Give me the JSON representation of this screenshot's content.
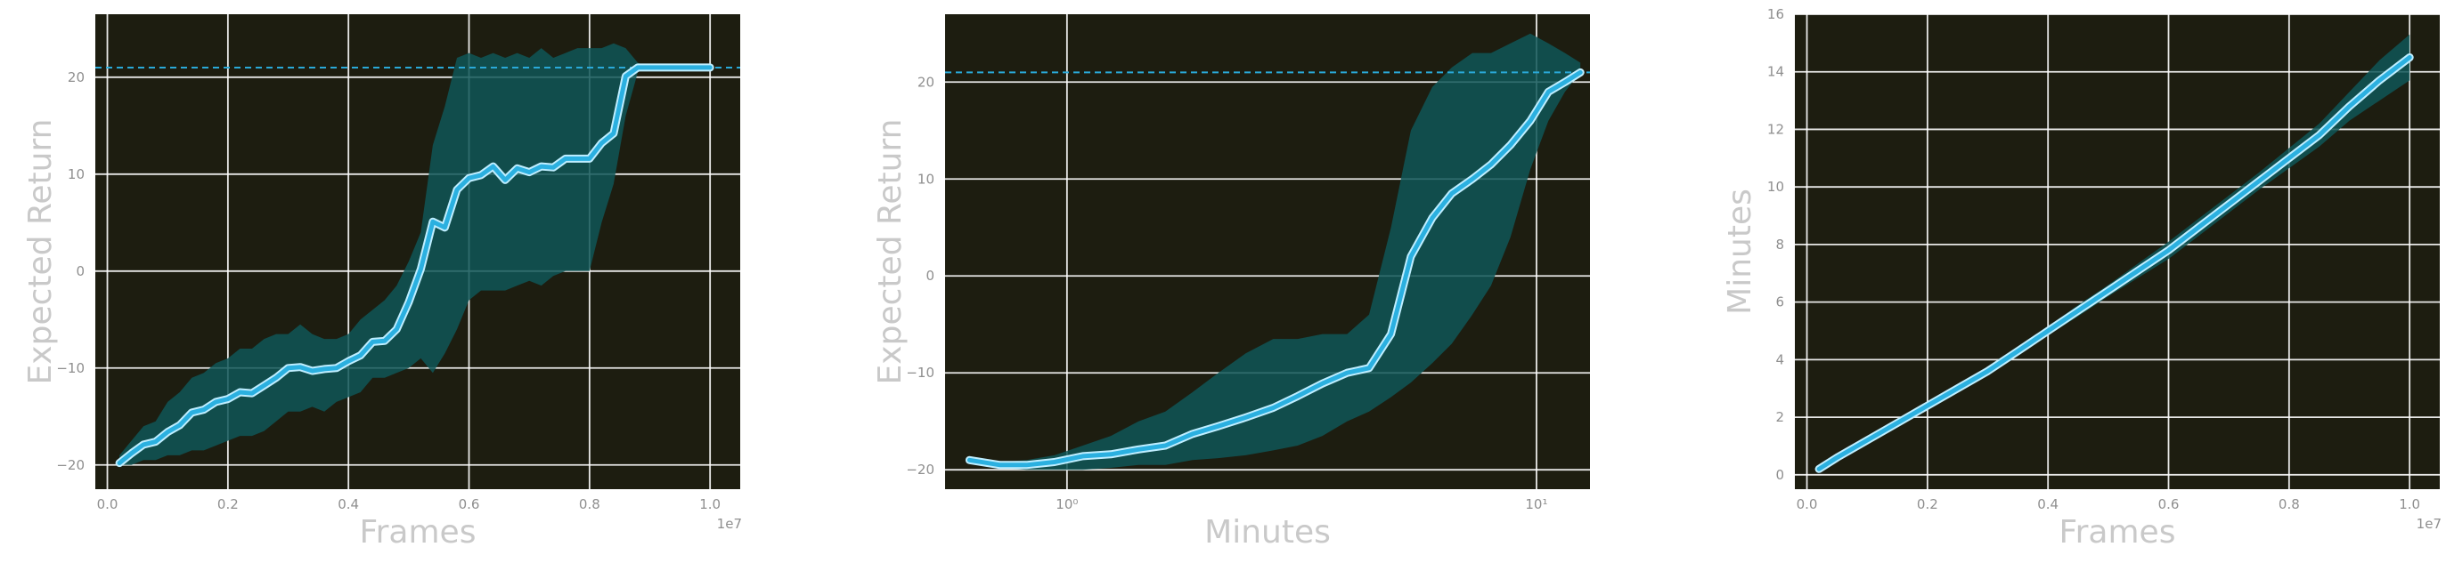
{
  "colors": {
    "background": "#1d1d10",
    "band": "#0f5657",
    "line": "#2bb0e0",
    "reference": "#2aa9d8"
  },
  "chart_data": [
    {
      "type": "line",
      "xlabel": "Frames",
      "ylabel": "Expected Return",
      "x_offset_label": "1e7",
      "xlim": [
        -0.02,
        1.05
      ],
      "ylim": [
        -22.5,
        26.5
      ],
      "xticks": [
        0.0,
        0.2,
        0.4,
        0.6,
        0.8,
        1.0
      ],
      "xtick_labels": [
        "0.0",
        "0.2",
        "0.4",
        "0.6",
        "0.8",
        "1.0"
      ],
      "yticks": [
        -20,
        -10,
        0,
        10,
        20
      ],
      "ytick_labels": [
        "−20",
        "−10",
        "0",
        "10",
        "20"
      ],
      "reference_line": 21,
      "grid": true,
      "x": [
        0.02,
        0.04,
        0.06,
        0.08,
        0.1,
        0.12,
        0.14,
        0.16,
        0.18,
        0.2,
        0.22,
        0.24,
        0.26,
        0.28,
        0.3,
        0.32,
        0.34,
        0.36,
        0.38,
        0.4,
        0.42,
        0.44,
        0.46,
        0.48,
        0.5,
        0.52,
        0.54,
        0.56,
        0.58,
        0.6,
        0.62,
        0.64,
        0.66,
        0.68,
        0.7,
        0.72,
        0.74,
        0.76,
        0.78,
        0.8,
        0.82,
        0.84,
        0.86,
        0.88,
        0.9,
        0.92,
        0.94,
        0.96,
        0.98,
        1.0
      ],
      "mean": [
        -19.8,
        -18.8,
        -17.9,
        -17.6,
        -16.6,
        -15.9,
        -14.6,
        -14.3,
        -13.5,
        -13.2,
        -12.5,
        -12.6,
        -11.8,
        -11.0,
        -10.0,
        -9.9,
        -10.3,
        -10.1,
        -10.0,
        -9.3,
        -8.7,
        -7.3,
        -7.2,
        -6.0,
        -3.2,
        0.2,
        5.1,
        4.5,
        8.4,
        9.6,
        9.9,
        10.8,
        9.4,
        10.6,
        10.2,
        10.8,
        10.7,
        11.6,
        11.6,
        11.6,
        13.2,
        14.2,
        20.1,
        21.0,
        21.0,
        21.0,
        21.0,
        21.0,
        21.0,
        21.0
      ],
      "upper": [
        -19.0,
        -17.5,
        -16.0,
        -15.5,
        -13.5,
        -12.5,
        -11.0,
        -10.5,
        -9.5,
        -9.0,
        -8.0,
        -8.0,
        -7.0,
        -6.5,
        -6.5,
        -5.5,
        -6.5,
        -7.0,
        -7.0,
        -6.5,
        -5.0,
        -4.0,
        -3.0,
        -1.5,
        1.0,
        4.0,
        13.0,
        17.0,
        22.0,
        22.5,
        22.0,
        22.5,
        22.0,
        22.5,
        22.0,
        23.0,
        22.0,
        22.5,
        23.0,
        23.0,
        23.0,
        23.5,
        23.0,
        21.5,
        21.0,
        21.0,
        21.0,
        21.0,
        21.0,
        21.0
      ],
      "lower": [
        -20.0,
        -20.0,
        -19.5,
        -19.5,
        -19.0,
        -19.0,
        -18.5,
        -18.5,
        -18.0,
        -17.5,
        -17.0,
        -17.0,
        -16.5,
        -15.5,
        -14.5,
        -14.5,
        -14.0,
        -14.5,
        -13.5,
        -13.0,
        -12.5,
        -11.0,
        -11.0,
        -10.5,
        -10.0,
        -9.0,
        -10.5,
        -8.5,
        -6.0,
        -3.0,
        -2.0,
        -2.0,
        -2.0,
        -1.5,
        -1.0,
        -1.5,
        -0.5,
        0.0,
        0.0,
        0.0,
        5.0,
        9.0,
        16.0,
        20.5,
        21.0,
        21.0,
        21.0,
        21.0,
        21.0,
        21.0
      ]
    },
    {
      "type": "line",
      "xlabel": "Minutes",
      "ylabel": "Expected Return",
      "xscale": "log",
      "xlim": [
        0.55,
        13.0
      ],
      "ylim": [
        -22.0,
        27.0
      ],
      "xticks": [
        1,
        10
      ],
      "xtick_labels": [
        "10⁰",
        "10¹"
      ],
      "yticks": [
        -20,
        -10,
        0,
        10,
        20
      ],
      "ytick_labels": [
        "−20",
        "−10",
        "0",
        "10",
        "20"
      ],
      "reference_line": 21,
      "grid": true,
      "x": [
        0.62,
        0.72,
        0.82,
        0.94,
        1.08,
        1.24,
        1.42,
        1.62,
        1.85,
        2.1,
        2.4,
        2.75,
        3.1,
        3.5,
        3.95,
        4.4,
        4.9,
        5.4,
        6.0,
        6.6,
        7.3,
        8.0,
        8.8,
        9.7,
        10.6,
        11.5,
        12.4
      ],
      "mean": [
        -19.0,
        -19.5,
        -19.5,
        -19.2,
        -18.6,
        -18.4,
        -17.9,
        -17.5,
        -16.3,
        -15.5,
        -14.6,
        -13.6,
        -12.4,
        -11.1,
        -10.0,
        -9.5,
        -6.0,
        2.0,
        6.0,
        8.5,
        10.0,
        11.5,
        13.5,
        16.0,
        19.0,
        20.0,
        21.0
      ],
      "upper": [
        -19.0,
        -19.2,
        -19.0,
        -18.5,
        -17.5,
        -16.5,
        -15.0,
        -14.0,
        -12.0,
        -10.0,
        -8.0,
        -6.5,
        -6.5,
        -6.0,
        -6.0,
        -4.0,
        5.0,
        15.0,
        19.5,
        21.5,
        23.0,
        23.0,
        24.0,
        25.0,
        24.0,
        23.0,
        22.0
      ],
      "lower": [
        -19.0,
        -19.8,
        -20.0,
        -20.0,
        -20.0,
        -19.8,
        -19.5,
        -19.5,
        -19.0,
        -18.8,
        -18.5,
        -18.0,
        -17.5,
        -16.5,
        -15.0,
        -14.0,
        -12.5,
        -11.0,
        -9.0,
        -7.0,
        -4.0,
        -1.0,
        4.0,
        11.0,
        16.0,
        19.0,
        21.0
      ]
    },
    {
      "type": "line",
      "xlabel": "Frames",
      "ylabel": "Minutes",
      "x_offset_label": "1e7",
      "xlim": [
        -0.02,
        1.05
      ],
      "ylim": [
        -0.5,
        16
      ],
      "xticks": [
        0.0,
        0.2,
        0.4,
        0.6,
        0.8,
        1.0
      ],
      "xtick_labels": [
        "0.0",
        "0.2",
        "0.4",
        "0.6",
        "0.8",
        "1.0"
      ],
      "yticks": [
        0,
        2,
        4,
        6,
        8,
        10,
        12,
        14,
        16
      ],
      "ytick_labels": [
        "0",
        "2",
        "4",
        "6",
        "8",
        "10",
        "12",
        "14",
        "16"
      ],
      "grid": true,
      "x": [
        0.02,
        0.05,
        0.1,
        0.15,
        0.2,
        0.25,
        0.3,
        0.35,
        0.4,
        0.45,
        0.5,
        0.55,
        0.6,
        0.65,
        0.7,
        0.75,
        0.8,
        0.85,
        0.9,
        0.95,
        1.0
      ],
      "mean": [
        0.2,
        0.6,
        1.2,
        1.8,
        2.4,
        3.0,
        3.6,
        4.3,
        5.0,
        5.7,
        6.4,
        7.1,
        7.8,
        8.6,
        9.4,
        10.2,
        11.0,
        11.8,
        12.8,
        13.7,
        14.5
      ],
      "upper": [
        0.25,
        0.7,
        1.3,
        1.9,
        2.5,
        3.1,
        3.75,
        4.45,
        5.15,
        5.9,
        6.6,
        7.35,
        8.1,
        8.9,
        9.7,
        10.5,
        11.35,
        12.2,
        13.3,
        14.4,
        15.3
      ],
      "lower": [
        0.15,
        0.5,
        1.1,
        1.7,
        2.3,
        2.9,
        3.45,
        4.15,
        4.85,
        5.5,
        6.2,
        6.85,
        7.5,
        8.3,
        9.1,
        9.9,
        10.65,
        11.4,
        12.3,
        13.0,
        13.7
      ]
    }
  ]
}
